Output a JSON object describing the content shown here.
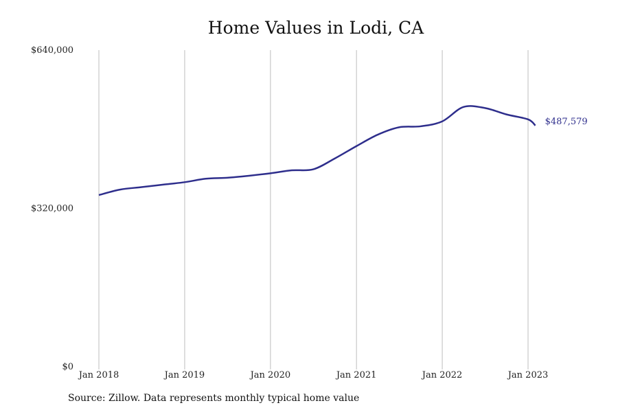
{
  "chart_data": {
    "type": "line",
    "title": "Home Values in Lodi, CA",
    "source": "Source: Zillow. Data represents monthly typical home value",
    "xlabel": "",
    "ylabel": "",
    "ylim": [
      0,
      640000
    ],
    "x_ticks": [
      "Jan 2018",
      "Jan 2019",
      "Jan 2020",
      "Jan 2021",
      "Jan 2022",
      "Jan 2023"
    ],
    "y_ticks": [
      "$0",
      "$320,000",
      "$640,000"
    ],
    "grid": "vertical",
    "line_color": "#2e2e8c",
    "series": [
      {
        "name": "",
        "x": [
          "2018-01",
          "2018-04",
          "2018-07",
          "2018-10",
          "2019-01",
          "2019-04",
          "2019-07",
          "2019-10",
          "2020-01",
          "2020-04",
          "2020-07",
          "2020-10",
          "2021-01",
          "2021-04",
          "2021-07",
          "2021-10",
          "2022-01",
          "2022-04",
          "2022-07",
          "2022-10",
          "2023-01",
          "2023-02"
        ],
        "values": [
          347000,
          358000,
          363000,
          368000,
          373000,
          380000,
          382000,
          386000,
          391000,
          397000,
          399000,
          421000,
          446000,
          469000,
          484000,
          486000,
          496000,
          525000,
          523000,
          510000,
          500000,
          487579
        ]
      }
    ],
    "end_label": "$487,579"
  }
}
